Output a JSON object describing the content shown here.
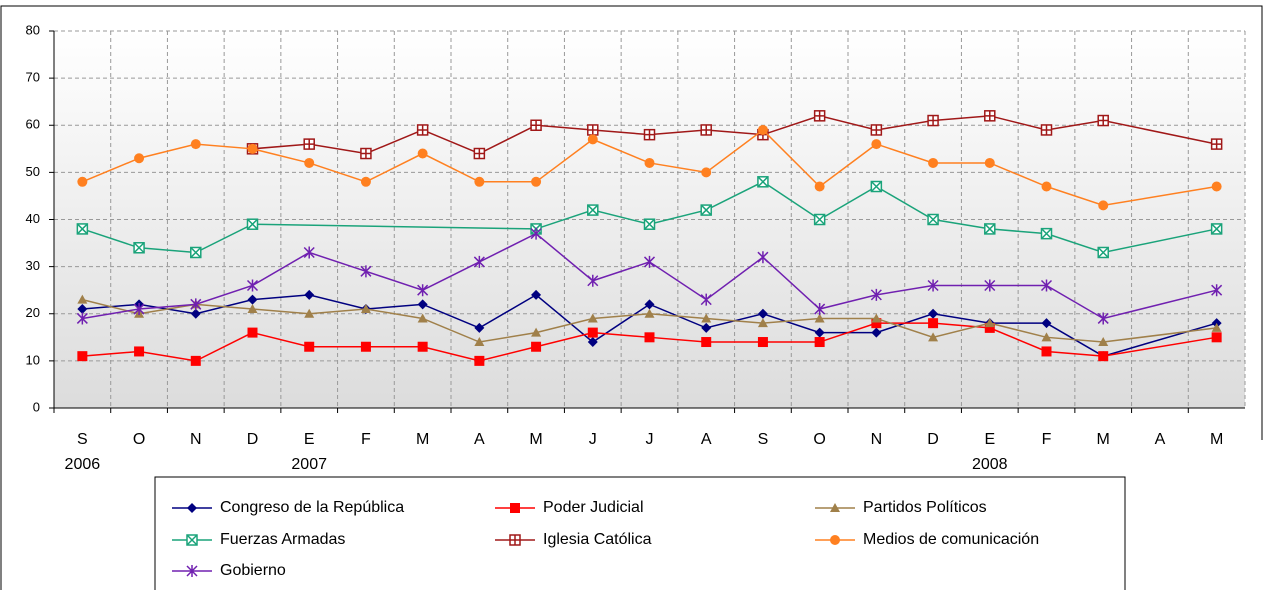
{
  "chart_data": {
    "type": "line",
    "categories": [
      "S",
      "O",
      "N",
      "D",
      "E",
      "F",
      "M",
      "A",
      "M",
      "J",
      "J",
      "A",
      "S",
      "O",
      "N",
      "D",
      "E",
      "F",
      "M",
      "A",
      "M"
    ],
    "years": [
      "2006",
      null,
      null,
      null,
      "2007",
      null,
      null,
      null,
      null,
      null,
      null,
      null,
      null,
      null,
      null,
      null,
      "2008",
      null,
      null,
      null,
      null
    ],
    "ylim": [
      0,
      80
    ],
    "yticks": [
      0,
      10,
      20,
      30,
      40,
      50,
      60,
      70,
      80
    ],
    "grid": true,
    "connect_gaps": true,
    "legend": "bottom",
    "series": [
      {
        "name": "Congreso de la República",
        "color": "#000080",
        "marker": "diamond",
        "values": [
          21,
          22,
          20,
          23,
          24,
          21,
          22,
          17,
          24,
          14,
          22,
          17,
          20,
          16,
          16,
          20,
          18,
          18,
          11,
          null,
          18
        ]
      },
      {
        "name": "Poder Judicial",
        "color": "#ff0000",
        "marker": "square",
        "values": [
          11,
          12,
          10,
          16,
          13,
          13,
          13,
          10,
          13,
          16,
          15,
          14,
          14,
          14,
          18,
          18,
          17,
          12,
          11,
          null,
          15
        ]
      },
      {
        "name": "Partidos Políticos",
        "color": "#a0804a",
        "marker": "triangle",
        "values": [
          23,
          20,
          22,
          21,
          20,
          21,
          19,
          14,
          16,
          19,
          20,
          19,
          18,
          19,
          19,
          15,
          18,
          15,
          14,
          null,
          17
        ]
      },
      {
        "name": "Fuerzas Armadas",
        "color": "#1aa37a",
        "marker": "xbox",
        "values": [
          38,
          34,
          33,
          39,
          null,
          null,
          null,
          null,
          38,
          42,
          39,
          42,
          48,
          40,
          47,
          40,
          38,
          37,
          33,
          null,
          38
        ]
      },
      {
        "name": "Iglesia Católica",
        "color": "#a01818",
        "marker": "plusbox",
        "values": [
          null,
          null,
          null,
          55,
          56,
          54,
          59,
          54,
          60,
          59,
          58,
          59,
          58,
          62,
          59,
          61,
          62,
          59,
          61,
          null,
          56
        ]
      },
      {
        "name": "Medios de comunicación",
        "color": "#ff8020",
        "marker": "circle",
        "values": [
          48,
          53,
          56,
          55,
          52,
          48,
          54,
          48,
          48,
          57,
          52,
          50,
          59,
          47,
          56,
          52,
          52,
          47,
          43,
          null,
          47
        ]
      },
      {
        "name": "Gobierno",
        "color": "#7020b0",
        "marker": "star",
        "values": [
          19,
          21,
          22,
          26,
          33,
          29,
          25,
          31,
          37,
          27,
          31,
          23,
          32,
          21,
          24,
          26,
          26,
          26,
          19,
          null,
          25
        ]
      }
    ]
  }
}
